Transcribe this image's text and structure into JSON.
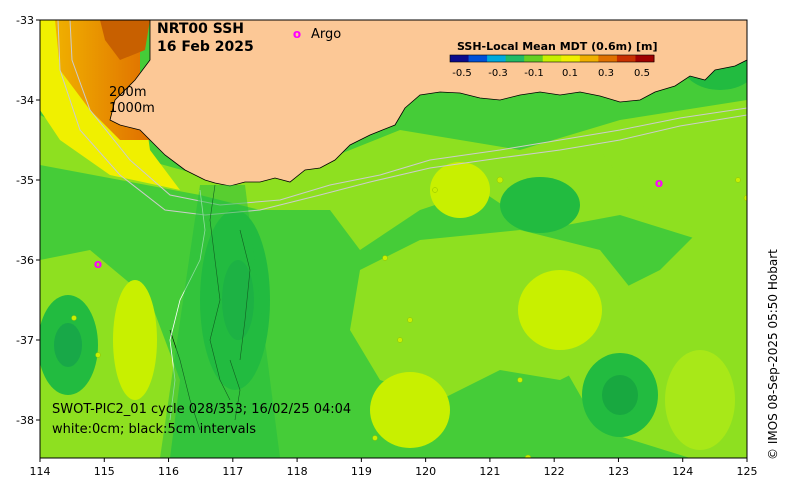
{
  "title_line1": "NRT00 SSH",
  "title_line2": "16 Feb 2025",
  "argo_label": "Argo",
  "argo_marker": "o",
  "depth_labels": [
    "200m",
    "1000m"
  ],
  "colorbar": {
    "title": "SSH-Local Mean MDT (0.6m) [m]",
    "ticks": [
      "-0.5",
      "-0.3",
      "-0.1",
      "0.1",
      "0.3",
      "0.5"
    ],
    "colors": [
      "#0a0a8c",
      "#0050d8",
      "#00aadd",
      "#22bb66",
      "#66d022",
      "#c8f000",
      "#f0f000",
      "#f0b000",
      "#e07000",
      "#c83000",
      "#a00000"
    ]
  },
  "annotation_line1": "SWOT-PIC2_01 cycle 028/353; 16/02/25 04:04",
  "annotation_line2": "white:0cm; black:5cm intervals",
  "credit": "© IMOS 08-Sep-2025 05:50 Hobart",
  "x_ticks": [
    "114",
    "115",
    "116",
    "117",
    "118",
    "119",
    "120",
    "121",
    "122",
    "123",
    "124",
    "125"
  ],
  "y_ticks": [
    "-33",
    "-34",
    "-35",
    "-36",
    "-37",
    "-38"
  ],
  "colors": {
    "land": "#fcc896",
    "ocean_base": "#45cc38",
    "argo": "#ff00ff"
  }
}
